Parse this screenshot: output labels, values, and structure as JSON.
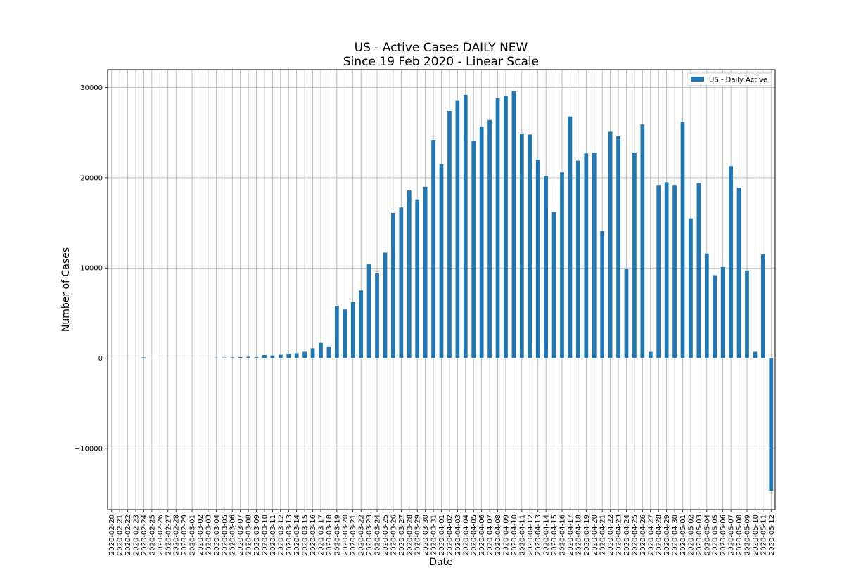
{
  "chart_data": {
    "type": "bar",
    "title": "US - Active Cases DAILY NEW",
    "subtitle": "Since 19 Feb 2020 - Linear Scale",
    "xlabel": "Date",
    "ylabel": "Number of Cases",
    "ylim": [
      -16800,
      32000
    ],
    "yticks": [
      -10000,
      0,
      10000,
      20000,
      30000
    ],
    "ytick_labels": [
      "−10000",
      "0",
      "10000",
      "20000",
      "30000"
    ],
    "grid": true,
    "legend_position": "top-right",
    "bar_color": "#1f77b4",
    "categories": [
      "2020-02-20",
      "2020-02-21",
      "2020-02-22",
      "2020-02-23",
      "2020-02-24",
      "2020-02-25",
      "2020-02-26",
      "2020-02-27",
      "2020-02-28",
      "2020-02-29",
      "2020-03-01",
      "2020-03-02",
      "2020-03-03",
      "2020-03-04",
      "2020-03-05",
      "2020-03-06",
      "2020-03-07",
      "2020-03-08",
      "2020-03-09",
      "2020-03-10",
      "2020-03-11",
      "2020-03-12",
      "2020-03-13",
      "2020-03-14",
      "2020-03-15",
      "2020-03-16",
      "2020-03-17",
      "2020-03-18",
      "2020-03-19",
      "2020-03-20",
      "2020-03-21",
      "2020-03-22",
      "2020-03-23",
      "2020-03-24",
      "2020-03-25",
      "2020-03-26",
      "2020-03-27",
      "2020-03-28",
      "2020-03-29",
      "2020-03-30",
      "2020-03-31",
      "2020-04-01",
      "2020-04-02",
      "2020-04-03",
      "2020-04-04",
      "2020-04-05",
      "2020-04-06",
      "2020-04-07",
      "2020-04-08",
      "2020-04-09",
      "2020-04-10",
      "2020-04-11",
      "2020-04-12",
      "2020-04-13",
      "2020-04-14",
      "2020-04-15",
      "2020-04-16",
      "2020-04-17",
      "2020-04-18",
      "2020-04-19",
      "2020-04-20",
      "2020-04-21",
      "2020-04-22",
      "2020-04-23",
      "2020-04-24",
      "2020-04-25",
      "2020-04-26",
      "2020-04-27",
      "2020-04-28",
      "2020-04-29",
      "2020-04-30",
      "2020-05-01",
      "2020-05-02",
      "2020-05-03",
      "2020-05-04",
      "2020-05-05",
      "2020-05-06",
      "2020-05-07",
      "2020-05-08",
      "2020-05-09",
      "2020-05-10",
      "2020-05-11",
      "2020-05-12"
    ],
    "series": [
      {
        "name": "US - Daily Active",
        "values": [
          0,
          0,
          0,
          0,
          80,
          0,
          0,
          0,
          0,
          0,
          0,
          0,
          0,
          60,
          80,
          90,
          120,
          150,
          100,
          350,
          300,
          380,
          500,
          550,
          700,
          1100,
          1700,
          1300,
          5800,
          5400,
          6200,
          7500,
          10400,
          9400,
          11700,
          16100,
          16700,
          18600,
          17600,
          19000,
          24200,
          21500,
          27400,
          28600,
          29200,
          24100,
          25700,
          26400,
          28800,
          29100,
          29600,
          24900,
          24800,
          22000,
          20200,
          16200,
          20600,
          26800,
          21900,
          22700,
          22800,
          14100,
          25100,
          24600,
          9900,
          22800,
          25900,
          700,
          19200,
          19500,
          19200,
          26200,
          15500,
          19400,
          11600,
          9200,
          10100,
          21300,
          18900,
          9700,
          700,
          11500,
          -14700
        ]
      }
    ]
  }
}
